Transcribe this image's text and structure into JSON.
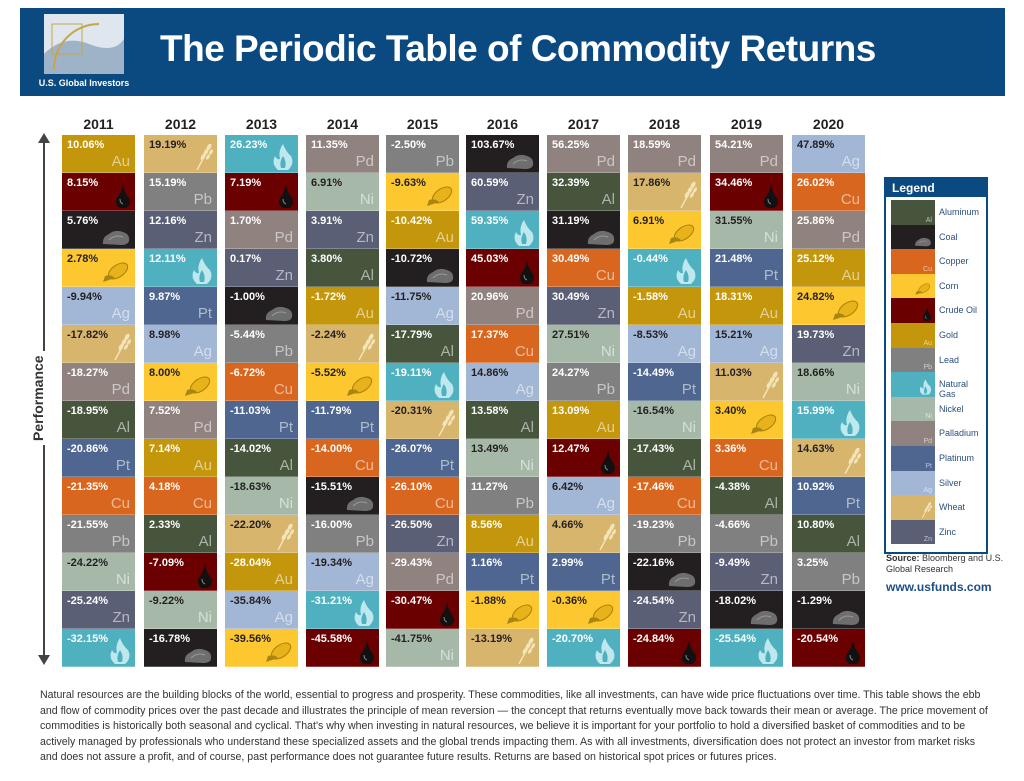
{
  "header": {
    "title": "The Periodic Table of Commodity Returns",
    "logo_text": "U.S. Global Investors"
  },
  "axis_label": "Performance",
  "commodities": {
    "Al": {
      "name": "Aluminum",
      "symbol": "Al",
      "color": "#46553c",
      "icon": "",
      "dark": false
    },
    "Coal": {
      "name": "Coal",
      "symbol": "",
      "color": "#231f20",
      "icon": "coal-icon",
      "dark": false
    },
    "Cu": {
      "name": "Copper",
      "symbol": "Cu",
      "color": "#d9661f",
      "icon": "",
      "dark": false
    },
    "Corn": {
      "name": "Corn",
      "symbol": "",
      "color": "#fdc82f",
      "icon": "corn-icon",
      "dark": true
    },
    "Oil": {
      "name": "Crude Oil",
      "symbol": "",
      "color": "#6b0000",
      "icon": "oil-drop-icon",
      "dark": false
    },
    "Au": {
      "name": "Gold",
      "symbol": "Au",
      "color": "#c4960c",
      "icon": "",
      "dark": false
    },
    "Pb": {
      "name": "Lead",
      "symbol": "Pb",
      "color": "#808080",
      "icon": "",
      "dark": false
    },
    "NG": {
      "name": "Natural Gas",
      "symbol": "",
      "color": "#4fb1c0",
      "icon": "flame-icon",
      "dark": false
    },
    "Ni": {
      "name": "Nickel",
      "symbol": "Ni",
      "color": "#a6b9a9",
      "icon": "",
      "dark": true
    },
    "Pd": {
      "name": "Palladium",
      "symbol": "Pd",
      "color": "#8f827f",
      "icon": "",
      "dark": false
    },
    "Pt": {
      "name": "Platinum",
      "symbol": "Pt",
      "color": "#4e6690",
      "icon": "",
      "dark": false
    },
    "Ag": {
      "name": "Silver",
      "symbol": "Ag",
      "color": "#a2b6d6",
      "icon": "",
      "dark": true
    },
    "Wheat": {
      "name": "Wheat",
      "symbol": "",
      "color": "#d7b56d",
      "icon": "wheat-icon",
      "dark": true
    },
    "Zn": {
      "name": "Zinc",
      "symbol": "Zn",
      "color": "#5b5f75",
      "icon": "",
      "dark": false
    }
  },
  "legend": {
    "title": "Legend",
    "order": [
      "Al",
      "Coal",
      "Cu",
      "Corn",
      "Oil",
      "Au",
      "Pb",
      "NG",
      "Ni",
      "Pd",
      "Pt",
      "Ag",
      "Wheat",
      "Zn"
    ]
  },
  "columns": [
    {
      "year": "2011",
      "cells": [
        [
          "Au",
          "10.06%"
        ],
        [
          "Oil",
          "8.15%"
        ],
        [
          "Coal",
          "5.76%"
        ],
        [
          "Corn",
          "2.78%"
        ],
        [
          "Ag",
          "-9.94%"
        ],
        [
          "Wheat",
          "-17.82%"
        ],
        [
          "Pd",
          "-18.27%"
        ],
        [
          "Al",
          "-18.95%"
        ],
        [
          "Pt",
          "-20.86%"
        ],
        [
          "Cu",
          "-21.35%"
        ],
        [
          "Pb",
          "-21.55%"
        ],
        [
          "Ni",
          "-24.22%"
        ],
        [
          "Zn",
          "-25.24%"
        ],
        [
          "NG",
          "-32.15%"
        ]
      ]
    },
    {
      "year": "2012",
      "cells": [
        [
          "Wheat",
          "19.19%"
        ],
        [
          "Pb",
          "15.19%"
        ],
        [
          "Zn",
          "12.16%"
        ],
        [
          "NG",
          "12.11%"
        ],
        [
          "Pt",
          "9.87%"
        ],
        [
          "Ag",
          "8.98%"
        ],
        [
          "Corn",
          "8.00%"
        ],
        [
          "Pd",
          "7.52%"
        ],
        [
          "Au",
          "7.14%"
        ],
        [
          "Cu",
          "4.18%"
        ],
        [
          "Al",
          "2.33%"
        ],
        [
          "Oil",
          "-7.09%"
        ],
        [
          "Ni",
          "-9.22%"
        ],
        [
          "Coal",
          "-16.78%"
        ]
      ]
    },
    {
      "year": "2013",
      "cells": [
        [
          "NG",
          "26.23%"
        ],
        [
          "Oil",
          "7.19%"
        ],
        [
          "Pd",
          "1.70%"
        ],
        [
          "Zn",
          "0.17%"
        ],
        [
          "Coal",
          "-1.00%"
        ],
        [
          "Pb",
          "-5.44%"
        ],
        [
          "Cu",
          "-6.72%"
        ],
        [
          "Pt",
          "-11.03%"
        ],
        [
          "Al",
          "-14.02%"
        ],
        [
          "Ni",
          "-18.63%"
        ],
        [
          "Wheat",
          "-22.20%"
        ],
        [
          "Au",
          "-28.04%"
        ],
        [
          "Ag",
          "-35.84%"
        ],
        [
          "Corn",
          "-39.56%"
        ]
      ]
    },
    {
      "year": "2014",
      "cells": [
        [
          "Pd",
          "11.35%"
        ],
        [
          "Ni",
          "6.91%"
        ],
        [
          "Zn",
          "3.91%"
        ],
        [
          "Al",
          "3.80%"
        ],
        [
          "Au",
          "-1.72%"
        ],
        [
          "Wheat",
          "-2.24%"
        ],
        [
          "Corn",
          "-5.52%"
        ],
        [
          "Pt",
          "-11.79%"
        ],
        [
          "Cu",
          "-14.00%"
        ],
        [
          "Coal",
          "-15.51%"
        ],
        [
          "Pb",
          "-16.00%"
        ],
        [
          "Ag",
          "-19.34%"
        ],
        [
          "NG",
          "-31.21%"
        ],
        [
          "Oil",
          "-45.58%"
        ]
      ]
    },
    {
      "year": "2015",
      "cells": [
        [
          "Pb",
          "-2.50%"
        ],
        [
          "Corn",
          "-9.63%"
        ],
        [
          "Au",
          "-10.42%"
        ],
        [
          "Coal",
          "-10.72%"
        ],
        [
          "Ag",
          "-11.75%"
        ],
        [
          "Al",
          "-17.79%"
        ],
        [
          "NG",
          "-19.11%"
        ],
        [
          "Wheat",
          "-20.31%"
        ],
        [
          "Pt",
          "-26.07%"
        ],
        [
          "Cu",
          "-26.10%"
        ],
        [
          "Zn",
          "-26.50%"
        ],
        [
          "Pd",
          "-29.43%"
        ],
        [
          "Oil",
          "-30.47%"
        ],
        [
          "Ni",
          "-41.75%"
        ]
      ]
    },
    {
      "year": "2016",
      "cells": [
        [
          "Coal",
          "103.67%"
        ],
        [
          "Zn",
          "60.59%"
        ],
        [
          "NG",
          "59.35%"
        ],
        [
          "Oil",
          "45.03%"
        ],
        [
          "Pd",
          "20.96%"
        ],
        [
          "Cu",
          "17.37%"
        ],
        [
          "Ag",
          "14.86%"
        ],
        [
          "Al",
          "13.58%"
        ],
        [
          "Ni",
          "13.49%"
        ],
        [
          "Pb",
          "11.27%"
        ],
        [
          "Au",
          "8.56%"
        ],
        [
          "Pt",
          "1.16%"
        ],
        [
          "Corn",
          "-1.88%"
        ],
        [
          "Wheat",
          "-13.19%"
        ]
      ]
    },
    {
      "year": "2017",
      "cells": [
        [
          "Pd",
          "56.25%"
        ],
        [
          "Al",
          "32.39%"
        ],
        [
          "Coal",
          "31.19%"
        ],
        [
          "Cu",
          "30.49%"
        ],
        [
          "Zn",
          "30.49%"
        ],
        [
          "Ni",
          "27.51%"
        ],
        [
          "Pb",
          "24.27%"
        ],
        [
          "Au",
          "13.09%"
        ],
        [
          "Oil",
          "12.47%"
        ],
        [
          "Ag",
          "6.42%"
        ],
        [
          "Wheat",
          "4.66%"
        ],
        [
          "Pt",
          "2.99%"
        ],
        [
          "Corn",
          "-0.36%"
        ],
        [
          "NG",
          "-20.70%"
        ]
      ]
    },
    {
      "year": "2018",
      "cells": [
        [
          "Pd",
          "18.59%"
        ],
        [
          "Wheat",
          "17.86%"
        ],
        [
          "Corn",
          "6.91%"
        ],
        [
          "NG",
          "-0.44%"
        ],
        [
          "Au",
          "-1.58%"
        ],
        [
          "Ag",
          "-8.53%"
        ],
        [
          "Pt",
          "-14.49%"
        ],
        [
          "Ni",
          "-16.54%"
        ],
        [
          "Al",
          "-17.43%"
        ],
        [
          "Cu",
          "-17.46%"
        ],
        [
          "Pb",
          "-19.23%"
        ],
        [
          "Coal",
          "-22.16%"
        ],
        [
          "Zn",
          "-24.54%"
        ],
        [
          "Oil",
          "-24.84%"
        ]
      ]
    },
    {
      "year": "2019",
      "cells": [
        [
          "Pd",
          "54.21%"
        ],
        [
          "Oil",
          "34.46%"
        ],
        [
          "Ni",
          "31.55%"
        ],
        [
          "Pt",
          "21.48%"
        ],
        [
          "Au",
          "18.31%"
        ],
        [
          "Ag",
          "15.21%"
        ],
        [
          "Wheat",
          "11.03%"
        ],
        [
          "Corn",
          "3.40%"
        ],
        [
          "Cu",
          "3.36%"
        ],
        [
          "Al",
          "-4.38%"
        ],
        [
          "Pb",
          "-4.66%"
        ],
        [
          "Zn",
          "-9.49%"
        ],
        [
          "Coal",
          "-18.02%"
        ],
        [
          "NG",
          "-25.54%"
        ]
      ]
    },
    {
      "year": "2020",
      "cells": [
        [
          "Ag",
          "47.89%"
        ],
        [
          "Cu",
          "26.02%"
        ],
        [
          "Pd",
          "25.86%"
        ],
        [
          "Au",
          "25.12%"
        ],
        [
          "Corn",
          "24.82%"
        ],
        [
          "Zn",
          "19.73%"
        ],
        [
          "Ni",
          "18.66%"
        ],
        [
          "NG",
          "15.99%"
        ],
        [
          "Wheat",
          "14.63%"
        ],
        [
          "Pt",
          "10.92%"
        ],
        [
          "Al",
          "10.80%"
        ],
        [
          "Pb",
          "3.25%"
        ],
        [
          "Coal",
          "-1.29%"
        ],
        [
          "Oil",
          "-20.54%"
        ]
      ]
    }
  ],
  "source": {
    "label": "Source:",
    "text": "Bloomberg and U.S. Global Research"
  },
  "url": "www.usfunds.com",
  "paragraph": "Natural resources are the building blocks of the world, essential to progress and prosperity. These commodities, like all investments, can have wide price fluctuations over time. This table shows the ebb and flow of commodity prices over the past decade and illustrates the principle of mean reversion — the concept that returns eventually move back towards their mean or average. The price movement of commodities is historically both seasonal and cyclical. That's why when investing in natural resources, we believe it is important for your portfolio to hold a diversified basket of commodities and to be actively managed by professionals who understand these specialized assets and the global trends impacting them. As with all investments, diversification does not protect an investor from market risks and does not assure a profit, and of course, past performance does not guarantee future results. Returns are based on historical spot prices or futures prices."
}
